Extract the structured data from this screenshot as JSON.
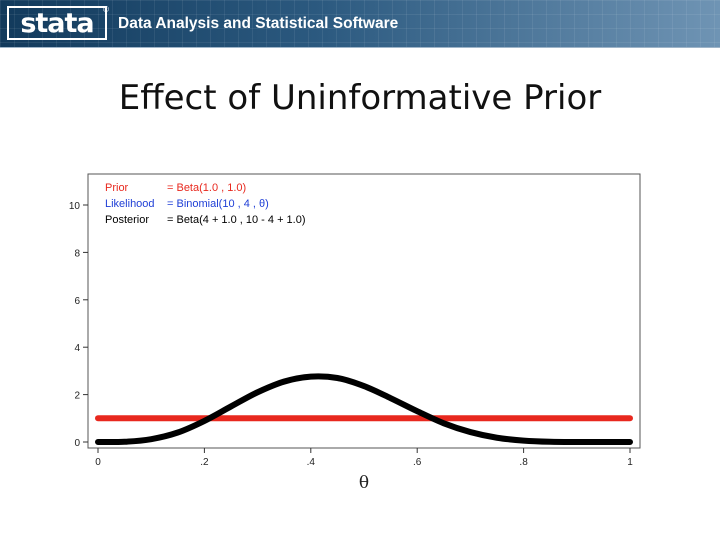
{
  "header": {
    "logo_text": "stata",
    "registered_mark": "®",
    "tagline": "Data Analysis and Statistical Software"
  },
  "slide": {
    "title": "Effect of Uninformative Prior"
  },
  "colors": {
    "prior": "#e8281e",
    "likelihood": "#1f3fd6",
    "posterior": "#000000",
    "banner": "#1f4a70"
  },
  "chart_data": {
    "type": "line",
    "title": "",
    "xlabel": "θ",
    "ylabel": "",
    "xlim": [
      0,
      1
    ],
    "ylim": [
      0,
      10
    ],
    "x_ticks": [
      0,
      0.2,
      0.4,
      0.6,
      0.8,
      1
    ],
    "x_tick_labels": [
      "0",
      ".2",
      ".4",
      ".6",
      ".8",
      "1"
    ],
    "y_ticks": [
      0,
      2,
      4,
      6,
      8,
      10
    ],
    "y_tick_labels": [
      "0",
      "2",
      "4",
      "6",
      "8",
      "10"
    ],
    "grid": false,
    "legend_placement": "top-left",
    "legend": [
      {
        "name": "Prior",
        "definition": "= Beta(1.0 , 1.0)",
        "color": "#e8281e"
      },
      {
        "name": "Likelihood",
        "definition": "= Binomial(10 , 4 , θ)",
        "color": "#1f3fd6"
      },
      {
        "name": "Posterior",
        "definition": "= Beta(4 + 1.0 , 10 - 4 + 1.0)",
        "color": "#000000"
      }
    ],
    "series": [
      {
        "name": "Prior",
        "color": "#e8281e",
        "x": [
          0,
          1
        ],
        "y": [
          1,
          1
        ]
      },
      {
        "name": "Posterior",
        "color": "#000000",
        "x": [
          0,
          0.05,
          0.1,
          0.15,
          0.2,
          0.25,
          0.3,
          0.35,
          0.4,
          0.45,
          0.5,
          0.55,
          0.6,
          0.65,
          0.7,
          0.75,
          0.8,
          0.85,
          0.9,
          0.95,
          1
        ],
        "y": [
          0,
          0.01,
          0.12,
          0.4,
          0.89,
          1.5,
          2.1,
          2.55,
          2.76,
          2.7,
          2.36,
          1.85,
          1.3,
          0.79,
          0.42,
          0.18,
          0.06,
          0.01,
          0.0,
          0.0,
          0
        ]
      }
    ]
  }
}
